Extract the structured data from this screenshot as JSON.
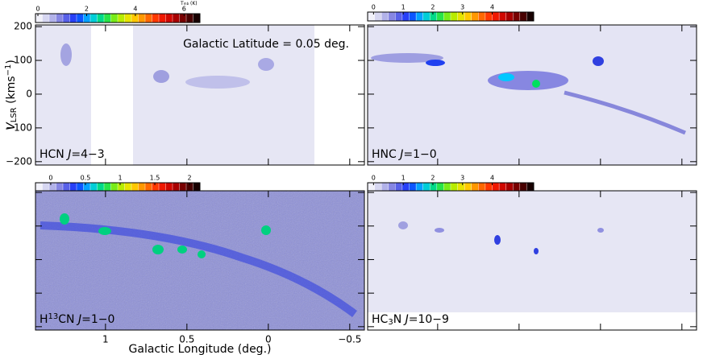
{
  "chart_data": {
    "type": "heatmap",
    "annotation": "Galactic Latitude = 0.05 deg.",
    "xlabel": "Galactic Longitude (deg.)",
    "ylabel": [
      {
        "text": "V",
        "italic": true
      },
      {
        "text": "LSR",
        "shift": "sub"
      },
      {
        "text": " (kms"
      },
      {
        "text": "−1",
        "shift": "sup"
      },
      {
        "text": ")"
      }
    ],
    "xlim": [
      1.43,
      -0.59
    ],
    "xticks": [
      1,
      0.5,
      0,
      {
        "value": -0.5,
        "label": "−0.5"
      }
    ],
    "ylim": [
      -210,
      205
    ],
    "yticks": [
      200,
      100,
      0,
      {
        "value": -100,
        "label": "−100"
      },
      {
        "value": -200,
        "label": "−200"
      }
    ],
    "colormap": [
      "#ffffff",
      "#c8c8ec",
      "#7070e0",
      "#1030ff",
      "#00c8ff",
      "#00e060",
      "#a0f000",
      "#ffe000",
      "#ff8000",
      "#ff2000",
      "#c00000",
      "#600000",
      "#000000"
    ],
    "panels": [
      {
        "label": [
          {
            "text": "HCN "
          },
          {
            "text": "J",
            "italic": true
          },
          {
            "text": "=4−3"
          }
        ],
        "colorbar": {
          "lim": [
            -0.1,
            6.65
          ],
          "ticks": [
            0,
            2,
            4,
            6
          ],
          "label": [
            {
              "text": "T"
            },
            {
              "text": "mb",
              "shift": "sub"
            },
            {
              "text": " (K)"
            }
          ]
        }
      },
      {
        "label": [
          {
            "text": "HNC "
          },
          {
            "text": "J",
            "italic": true
          },
          {
            "text": "=1−0"
          }
        ],
        "colorbar": {
          "lim": [
            -0.2,
            5.4
          ],
          "ticks": [
            0,
            1,
            2,
            3,
            4
          ]
        }
      },
      {
        "label": [
          {
            "text": "H"
          },
          {
            "text": "13",
            "shift": "sup"
          },
          {
            "text": "CN "
          },
          {
            "text": "J",
            "italic": true
          },
          {
            "text": "=1−0"
          }
        ],
        "colorbar": {
          "lim": [
            -0.22,
            2.15
          ],
          "ticks": [
            0,
            0.5,
            1,
            1.5,
            2
          ]
        }
      },
      {
        "label": [
          {
            "text": "HC"
          },
          {
            "text": "3",
            "shift": "sub"
          },
          {
            "text": "N "
          },
          {
            "text": "J",
            "italic": true
          },
          {
            "text": "=10−9"
          }
        ],
        "colorbar": {
          "lim": [
            -0.2,
            5.4
          ],
          "ticks": [
            0,
            1,
            2,
            3,
            4
          ]
        }
      }
    ]
  }
}
